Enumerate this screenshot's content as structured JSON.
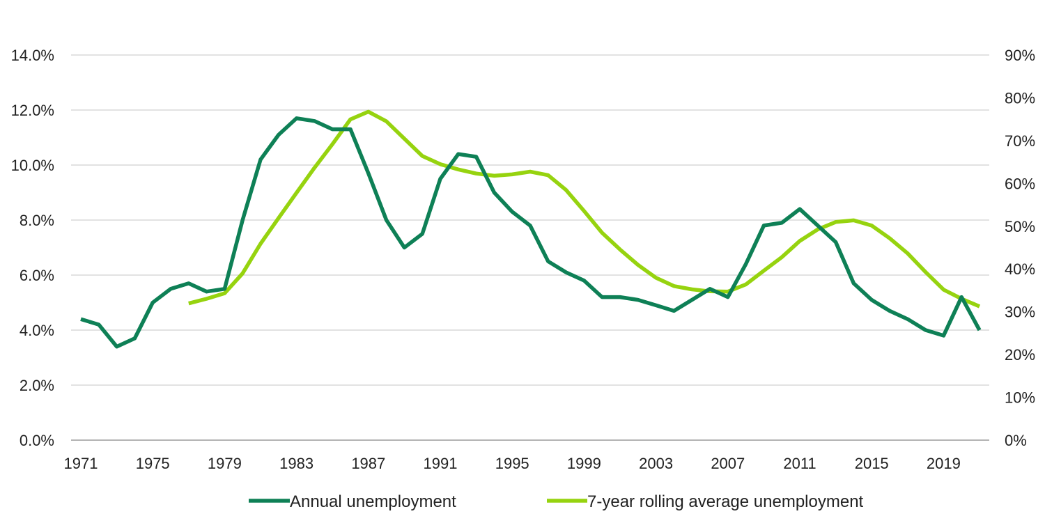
{
  "chart_data": {
    "type": "line",
    "title": "",
    "xlabel": "",
    "ylabel": "",
    "x": [
      1971,
      1972,
      1973,
      1974,
      1975,
      1976,
      1977,
      1978,
      1979,
      1980,
      1981,
      1982,
      1983,
      1984,
      1985,
      1986,
      1987,
      1988,
      1989,
      1990,
      1991,
      1992,
      1993,
      1994,
      1995,
      1996,
      1997,
      1998,
      1999,
      2000,
      2001,
      2002,
      2003,
      2004,
      2005,
      2006,
      2007,
      2008,
      2009,
      2010,
      2011,
      2012,
      2013,
      2014,
      2015,
      2016,
      2017,
      2018,
      2019,
      2020,
      2021
    ],
    "x_tick_labels": [
      "1971",
      "1975",
      "1979",
      "1983",
      "1987",
      "1991",
      "1995",
      "1999",
      "2003",
      "2007",
      "2011",
      "2015",
      "2019"
    ],
    "xlim": [
      1971,
      2021
    ],
    "y_left": {
      "ylim": [
        0,
        14
      ],
      "tick_labels": [
        "0.0%",
        "2.0%",
        "4.0%",
        "6.0%",
        "8.0%",
        "10.0%",
        "12.0%",
        "14.0%"
      ]
    },
    "y_right": {
      "ylim": [
        0,
        90
      ],
      "tick_labels": [
        "0%",
        "10%",
        "20%",
        "30%",
        "40%",
        "50%",
        "60%",
        "70%",
        "80%",
        "90%"
      ]
    },
    "grid": true,
    "legend_position": "bottom",
    "series": [
      {
        "name": "Annual unemployment",
        "color": "#0e8056",
        "axis": "left",
        "x": [
          1971,
          1972,
          1973,
          1974,
          1975,
          1976,
          1977,
          1978,
          1979,
          1980,
          1981,
          1982,
          1983,
          1984,
          1985,
          1986,
          1987,
          1988,
          1989,
          1990,
          1991,
          1992,
          1993,
          1994,
          1995,
          1996,
          1997,
          1998,
          1999,
          2000,
          2001,
          2002,
          2003,
          2004,
          2005,
          2006,
          2007,
          2008,
          2009,
          2010,
          2011,
          2012,
          2013,
          2014,
          2015,
          2016,
          2017,
          2018,
          2019,
          2020,
          2021
        ],
        "values": [
          4.4,
          4.2,
          3.4,
          3.7,
          5.0,
          5.5,
          5.7,
          5.4,
          5.5,
          8.0,
          10.2,
          11.1,
          11.7,
          11.6,
          11.3,
          11.3,
          9.7,
          8.0,
          7.0,
          7.5,
          9.5,
          10.4,
          10.3,
          9.0,
          8.3,
          7.8,
          6.5,
          6.1,
          5.8,
          5.2,
          5.2,
          5.1,
          4.9,
          4.7,
          5.1,
          5.5,
          5.2,
          6.4,
          7.8,
          7.9,
          8.4,
          7.8,
          7.2,
          5.7,
          5.1,
          4.7,
          4.4,
          4.0,
          3.8,
          5.2,
          4.0
        ]
      },
      {
        "name": "7-year rolling average unemployment",
        "color": "#96d30f",
        "axis": "left",
        "x": [
          1977,
          1978,
          1979,
          1980,
          1981,
          1982,
          1983,
          1984,
          1985,
          1986,
          1987,
          1988,
          1989,
          1990,
          1991,
          1992,
          1993,
          1994,
          1995,
          1996,
          1997,
          1998,
          1999,
          2000,
          2001,
          2002,
          2003,
          2004,
          2005,
          2006,
          2007,
          2008,
          2009,
          2010,
          2011,
          2012,
          2013,
          2014,
          2015,
          2016,
          2017,
          2018,
          2019,
          2020,
          2021
        ],
        "values": [
          4.97,
          5.14,
          5.34,
          6.06,
          7.14,
          8.07,
          8.99,
          9.9,
          10.76,
          11.66,
          11.94,
          11.59,
          10.96,
          10.33,
          10.03,
          9.84,
          9.69,
          9.61,
          9.66,
          9.76,
          9.63,
          9.09,
          8.33,
          7.54,
          6.93,
          6.37,
          5.9,
          5.6,
          5.48,
          5.41,
          5.4,
          5.66,
          6.16,
          6.65,
          7.24,
          7.66,
          7.93,
          7.99,
          7.8,
          7.34,
          6.79,
          6.11,
          5.47,
          5.14,
          4.86
        ]
      }
    ]
  }
}
